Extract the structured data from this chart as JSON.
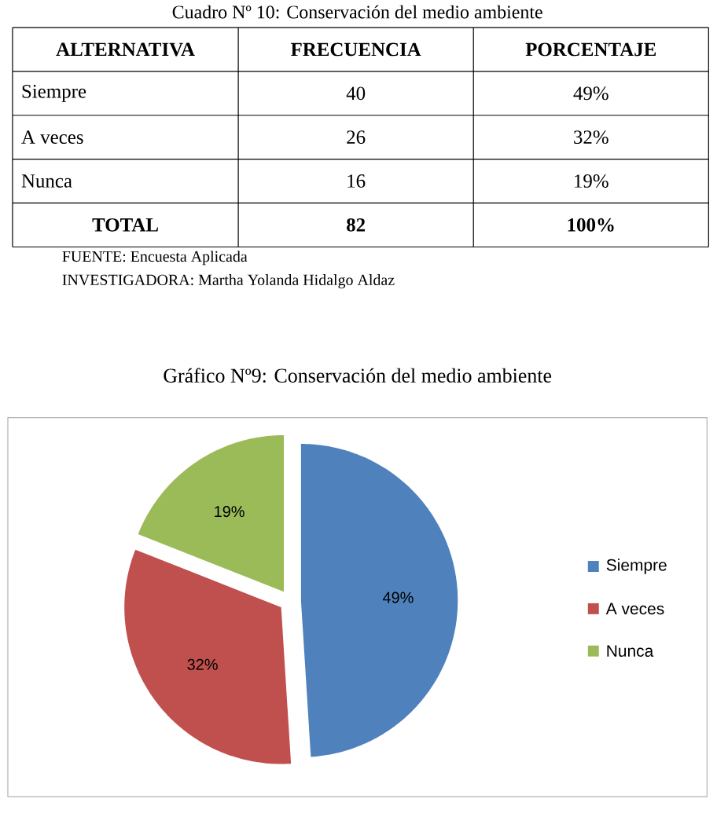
{
  "chart_data": {
    "type": "pie",
    "title": "Gráfico Nº9: Conservación del medio ambiente",
    "categories": [
      "Siempre",
      "A veces",
      "Nunca"
    ],
    "values": [
      49,
      32,
      19
    ],
    "value_labels": [
      "49%",
      "32%",
      "19%"
    ],
    "colors": [
      "#4f81bd",
      "#c0504d",
      "#9bbb59"
    ],
    "legend": "right",
    "annotations": [
      "Cuadro Nº 10: Conservación del medio ambiente",
      "ALTERNATIVA",
      "FRECUENCIA",
      "PORCENTAJE",
      "Siempre",
      "40",
      "49%",
      "A veces",
      "26",
      "32%",
      "Nunca",
      "16",
      "19%",
      "TOTAL",
      "82",
      "100%",
      "FUENTE: Encuesta Aplicada",
      "INVESTIGADORA: Martha Yolanda Hidalgo Aldaz"
    ]
  }
}
